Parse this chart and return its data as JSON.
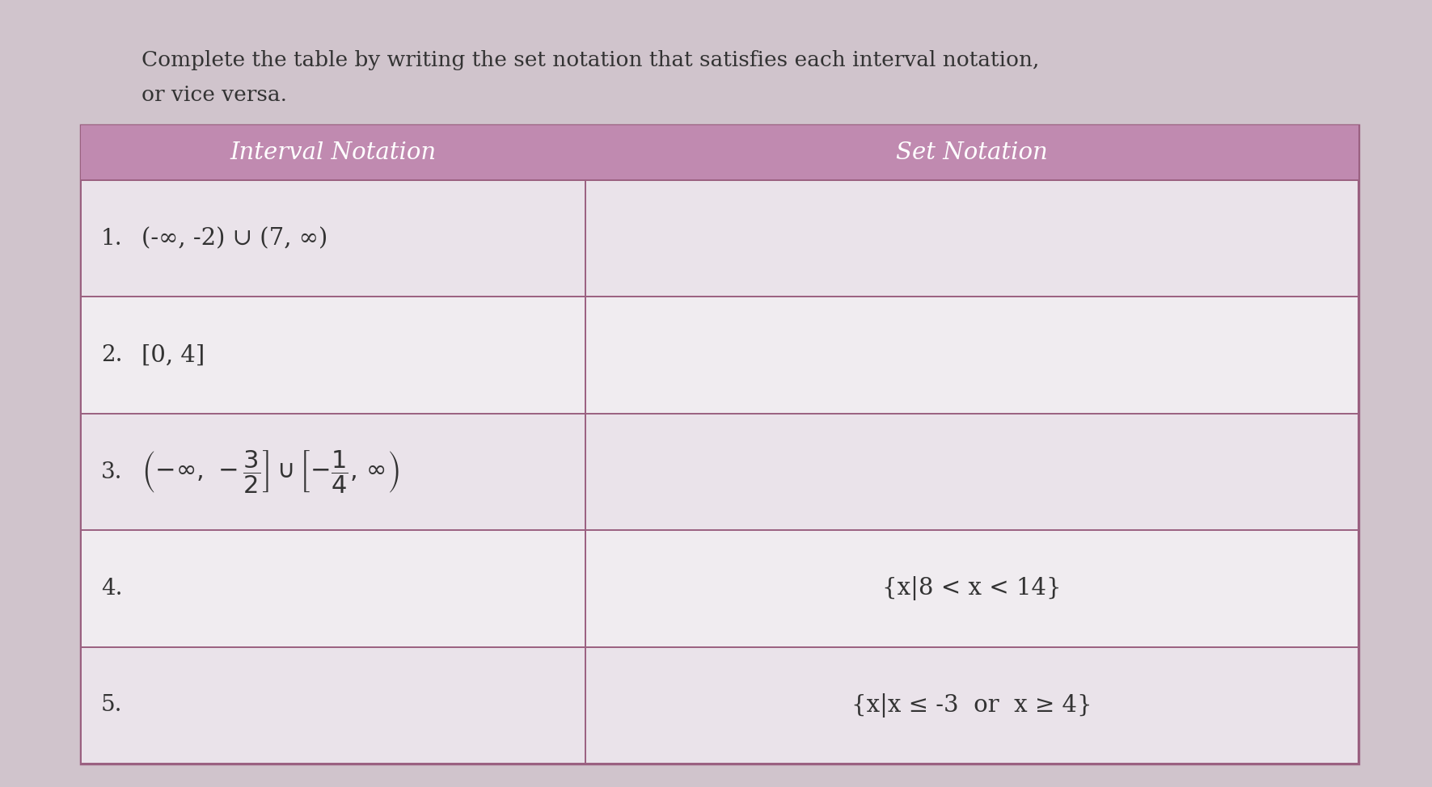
{
  "title_line1": "Complete the table by writing the set notation that satisfies each interval notation,",
  "title_line2": "or vice versa.",
  "header_left": "Interval Notation",
  "header_right": "Set Notation",
  "header_bg": "#c08ab0",
  "header_text_color": "#ffffff",
  "page_bg": "#d0c4cc",
  "content_bg": "#e8e0e8",
  "row_bg_odd": "#eae3ea",
  "row_bg_even": "#f0ecf0",
  "border_color": "#9a6080",
  "text_color": "#333333",
  "title_color": "#333333",
  "rows": [
    {
      "num": "1.",
      "left_text": "(-∞, -2) ∪ (7, ∞)",
      "right_text": ""
    },
    {
      "num": "2.",
      "left_text": "[0, 4]",
      "right_text": ""
    },
    {
      "num": "3.",
      "left_text": "frac_row",
      "right_text": ""
    },
    {
      "num": "4.",
      "left_text": "",
      "right_text": "{x|8 < x < 14}"
    },
    {
      "num": "5.",
      "left_text": "",
      "right_text": "{x|x ≤ -3  or  x ≥ 4}"
    }
  ],
  "figsize": [
    17.71,
    9.74
  ],
  "dpi": 100
}
